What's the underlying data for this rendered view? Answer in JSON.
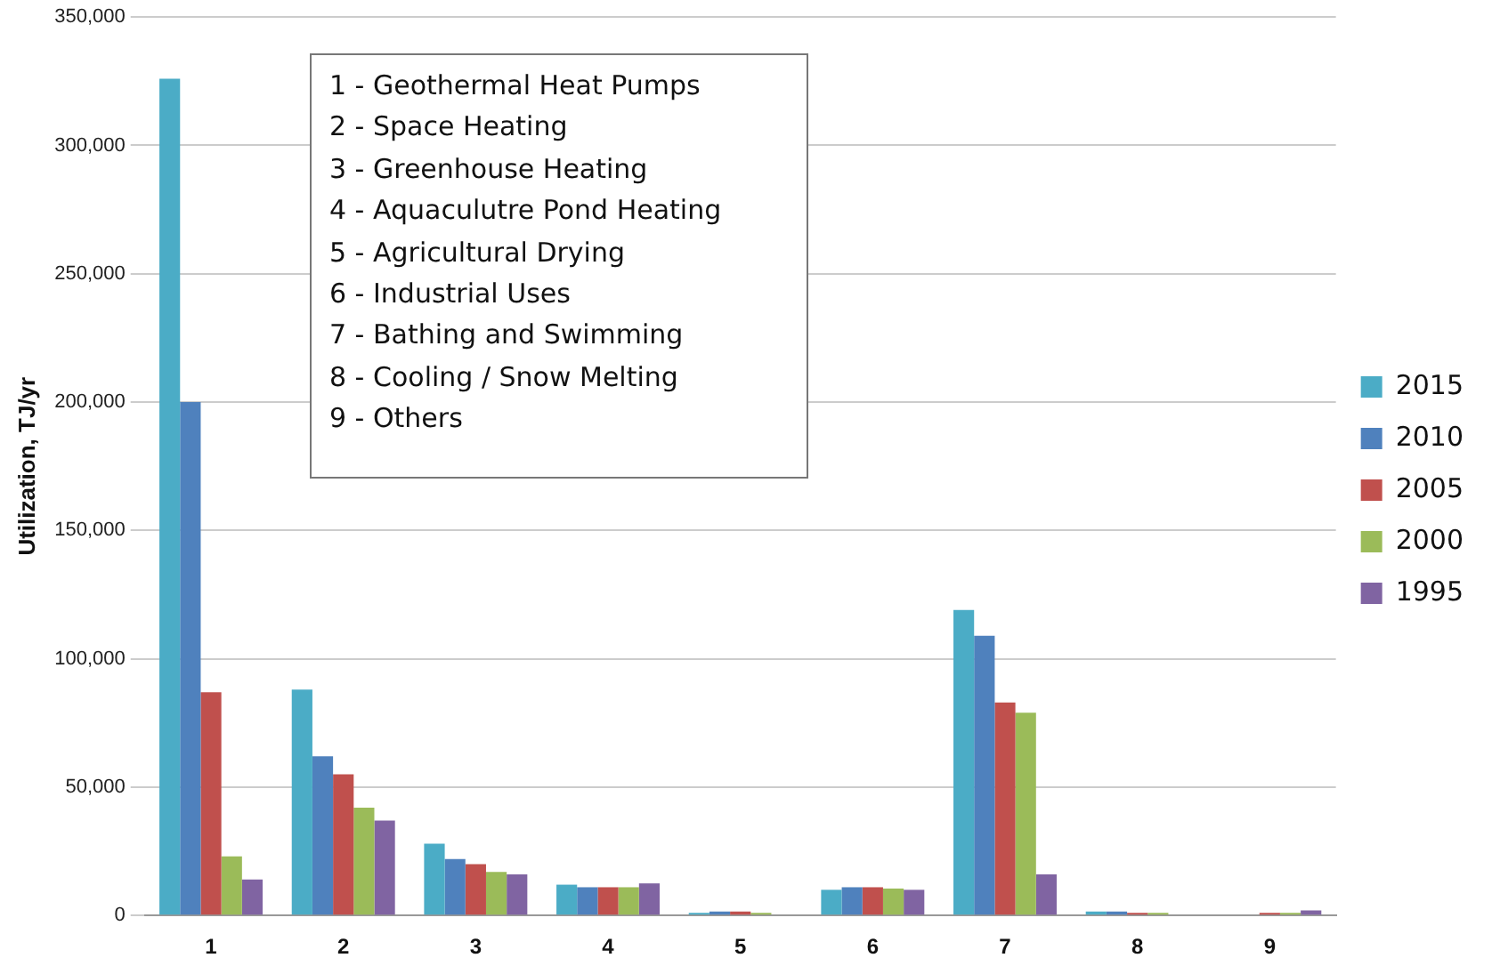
{
  "chart_data": {
    "type": "bar",
    "ylabel": "Utilization, TJ/yr",
    "categories": [
      "1",
      "2",
      "3",
      "4",
      "5",
      "6",
      "7",
      "8",
      "9"
    ],
    "series": [
      {
        "name": "2015",
        "color": "#4bacc6",
        "values": [
          326000,
          88000,
          28000,
          12000,
          1000,
          10000,
          119000,
          1500,
          null
        ]
      },
      {
        "name": "2010",
        "color": "#4f81bd",
        "values": [
          200000,
          62000,
          22000,
          11000,
          1500,
          11000,
          109000,
          1500,
          null
        ]
      },
      {
        "name": "2005",
        "color": "#c0504d",
        "values": [
          87000,
          55000,
          20000,
          11000,
          1500,
          11000,
          83000,
          1000,
          1000
        ]
      },
      {
        "name": "2000",
        "color": "#9bbb59",
        "values": [
          23000,
          42000,
          17000,
          11000,
          1000,
          10500,
          79000,
          1000,
          1000
        ]
      },
      {
        "name": "1995",
        "color": "#8064a2",
        "values": [
          14000,
          37000,
          16000,
          12500,
          null,
          10000,
          16000,
          null,
          2000
        ]
      }
    ],
    "ylim": [
      0,
      350000
    ],
    "yticks": [
      {
        "value": 0,
        "label": "0"
      },
      {
        "value": 50000,
        "label": "50,000"
      },
      {
        "value": 100000,
        "label": "100,000"
      },
      {
        "value": 150000,
        "label": "150,000"
      },
      {
        "value": 200000,
        "label": "200,000"
      },
      {
        "value": 250000,
        "label": "250,000"
      },
      {
        "value": 300000,
        "label": "300,000"
      },
      {
        "value": 350000,
        "label": "350,000"
      }
    ],
    "grid": "y",
    "legend": "right",
    "annotations": [
      "1 - Geothermal Heat Pumps",
      "2 - Space Heating",
      "3 - Greenhouse Heating",
      "4 - Aquaculutre Pond Heating",
      "5 - Agricultural Drying",
      "6 - Industrial Uses",
      "7 - Bathing and Swimming",
      "8 - Cooling / Snow Melting",
      "9 - Others"
    ]
  }
}
